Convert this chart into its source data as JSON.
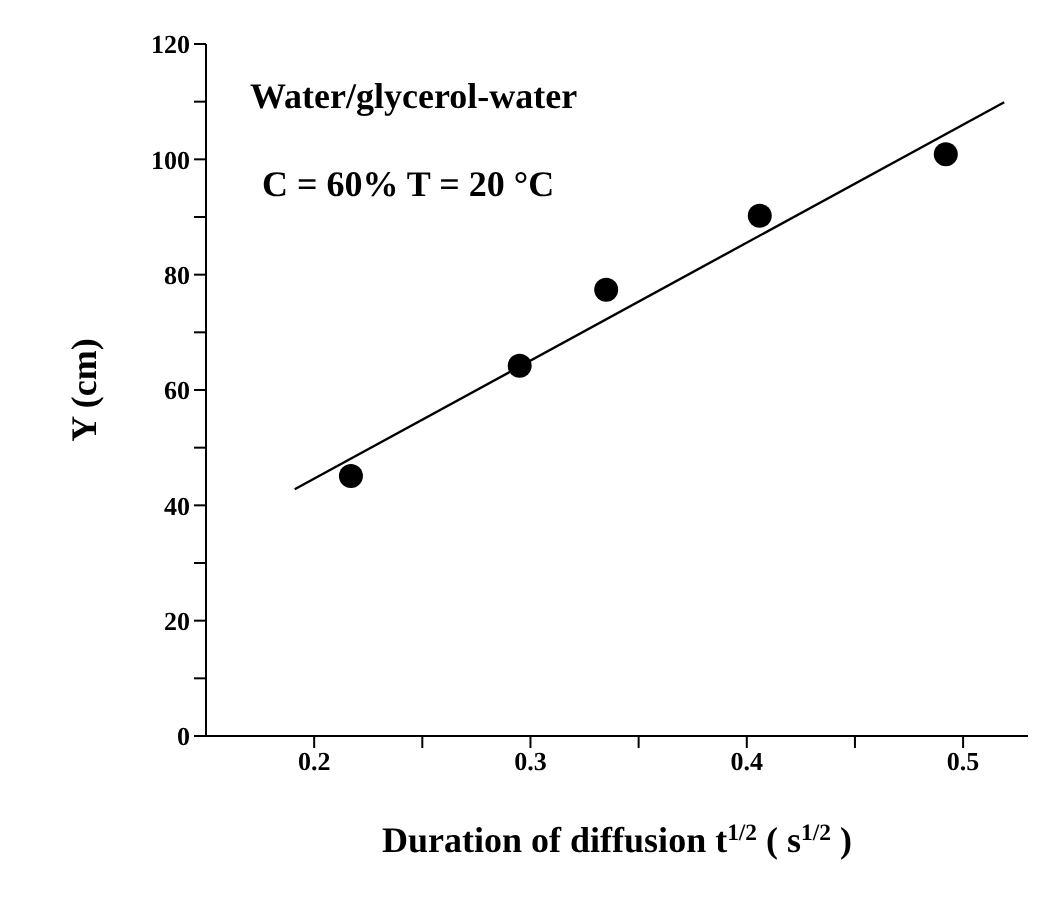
{
  "chart_data": {
    "type": "scatter",
    "xlabel": "Duration of diffusion t$^{1/2}$ ( s$^{1/2}$ )",
    "ylabel": "Y (cm)",
    "annotations": [
      "Water/glycerol-water",
      "C = 60% T = 20 °C"
    ],
    "series": [
      {
        "marker": "circle",
        "color": "#000000",
        "x": [
          0.217,
          0.295,
          0.335,
          0.406,
          0.492
        ],
        "values": [
          45.1,
          64.2,
          77.4,
          90.2,
          100.9
        ]
      },
      {
        "type": "line",
        "color": "#000000",
        "x": [
          0.191,
          0.519
        ],
        "values": [
          42.8,
          109.9
        ]
      }
    ],
    "xlim": [
      0.15,
      0.53
    ],
    "xticks": [
      0.2,
      {
        "value": 0.25,
        "label": null
      },
      0.3,
      {
        "value": 0.35,
        "label": null
      },
      0.4,
      {
        "value": 0.45,
        "label": null
      },
      0.5
    ],
    "ylim": [
      0,
      120
    ],
    "yticks": [
      0,
      {
        "value": 10,
        "label": null
      },
      20,
      {
        "value": 30,
        "label": null
      },
      40,
      {
        "value": 50,
        "label": null
      },
      60,
      {
        "value": 70,
        "label": null
      },
      80,
      {
        "value": 90,
        "label": null
      },
      100,
      {
        "value": 110,
        "label": null
      },
      120
    ],
    "grid": false
  }
}
